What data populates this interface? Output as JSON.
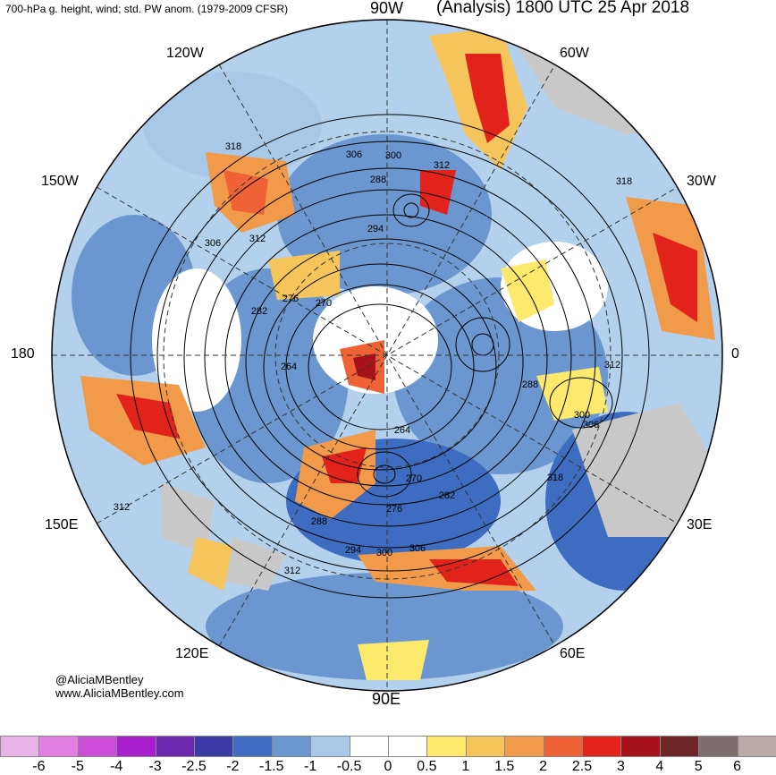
{
  "header": {
    "title_left": "700-hPa g. height, wind; std. PW anom. (1979-2009 CFSR)",
    "title_right": "(Analysis) 1800 UTC 25 Apr 2018"
  },
  "longitude_labels": {
    "n90w": "90W",
    "n120w": "120W",
    "n60w": "60W",
    "n150w": "150W",
    "n30w": "30W",
    "n180": "180",
    "n0": "0",
    "n150e": "150E",
    "n30e": "30E",
    "n120e": "120E",
    "n60e": "60E",
    "n90e": "90E"
  },
  "contour_labels": [
    "318",
    "306",
    "312",
    "306",
    "300",
    "288",
    "312",
    "294",
    "318",
    "276",
    "270",
    "282",
    "264",
    "288",
    "312",
    "300",
    "306",
    "264",
    "270",
    "282",
    "276",
    "318",
    "312",
    "288",
    "294",
    "300",
    "306",
    "312"
  ],
  "credit": {
    "handle": "@AliciaMBentley",
    "site": "www.AliciaMBentley.com"
  },
  "colorbar": {
    "labels": [
      "-6",
      "-5",
      "-4",
      "-3",
      "-2.5",
      "-2",
      "-1.5",
      "-1",
      "-0.5",
      "0",
      "0.5",
      "1",
      "1.5",
      "2",
      "2.5",
      "3",
      "4",
      "5",
      "6"
    ],
    "colors": [
      "#e8b4e8",
      "#e37fe3",
      "#cc4dd8",
      "#a91fce",
      "#6d28b0",
      "#3c3aa5",
      "#3e6cc0",
      "#6b96cf",
      "#a7c8e6",
      "#ffffff",
      "#ffffff",
      "#fde96c",
      "#f5c45a",
      "#f19a4a",
      "#ee6235",
      "#e1231c",
      "#a6111a",
      "#6e2627",
      "#7c6d6e",
      "#b9aaa8"
    ]
  }
}
